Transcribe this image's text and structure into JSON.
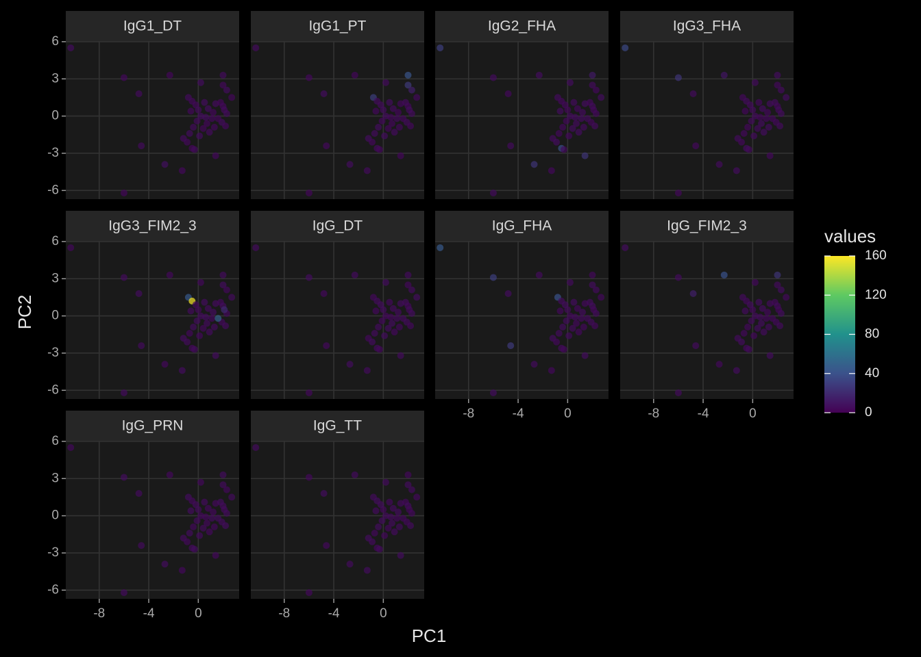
{
  "chart_data": {
    "type": "scatter",
    "x_label": "PC1",
    "y_label": "PC2",
    "x": [
      -10.3,
      -6.0,
      -4.8,
      -2.3,
      -4.6,
      -2.7,
      -1.3,
      -6.0,
      0.2,
      2.0,
      2.0,
      2.3,
      2.7,
      -0.8,
      -0.5,
      0.5,
      1.4,
      1.8,
      2.0,
      0.8,
      0.0,
      -0.6,
      1.2,
      2.3,
      0.2,
      1.1,
      -0.1,
      0.7,
      1.9,
      2.2,
      -0.4,
      0.4,
      1.3,
      -0.7,
      -1.2,
      -0.9,
      -0.5,
      -0.3,
      1.4,
      0.1,
      0.9,
      1.6,
      -0.2,
      0.6,
      2.1
    ],
    "y": [
      5.5,
      3.1,
      1.8,
      3.3,
      -2.4,
      -3.9,
      -4.4,
      -6.2,
      2.7,
      3.3,
      2.5,
      2.1,
      1.5,
      1.5,
      1.2,
      1.1,
      1.0,
      1.1,
      0.8,
      0.6,
      0.5,
      0.4,
      0.3,
      0.2,
      0.0,
      -0.2,
      -0.4,
      -0.6,
      -0.5,
      -0.8,
      -0.9,
      -1.0,
      -0.9,
      -1.4,
      -1.8,
      -2.1,
      -2.6,
      -2.7,
      -3.2,
      -1.6,
      -1.3,
      -0.2,
      0.9,
      -0.1,
      0.5
    ],
    "xlim": [
      -10.7,
      3.3
    ],
    "ylim": [
      -6.7,
      6.05
    ],
    "xticks": [
      -8,
      -4,
      0
    ],
    "yticks": [
      -6,
      -3,
      0,
      3,
      6
    ],
    "facets": [
      {
        "name": "IgG1_DT",
        "values": [
          6,
          4,
          5,
          3,
          5,
          7,
          4,
          3,
          6,
          5,
          4,
          6,
          3,
          5,
          4,
          6,
          5,
          3,
          4,
          6,
          5,
          4,
          3,
          5,
          6,
          4,
          5,
          3,
          6,
          4,
          5,
          3,
          4,
          6,
          5,
          4,
          3,
          5,
          4,
          6,
          5,
          3,
          4,
          6,
          5
        ]
      },
      {
        "name": "IgG1_PT",
        "values": [
          5,
          4,
          6,
          3,
          4,
          6,
          5,
          3,
          5,
          42,
          28,
          15,
          4,
          30,
          5,
          6,
          4,
          5,
          4,
          5,
          6,
          4,
          3,
          5,
          6,
          5,
          4,
          3,
          5,
          4,
          6,
          3,
          4,
          5,
          6,
          4,
          5,
          4,
          3,
          6,
          5,
          4,
          5,
          4,
          6
        ]
      },
      {
        "name": "IgG2_FHA",
        "values": [
          30,
          5,
          4,
          6,
          5,
          25,
          4,
          5,
          6,
          12,
          5,
          4,
          6,
          5,
          4,
          5,
          6,
          4,
          5,
          4,
          3,
          6,
          5,
          4,
          5,
          6,
          4,
          5,
          3,
          5,
          4,
          6,
          5,
          4,
          5,
          6,
          38,
          5,
          25,
          4,
          6,
          5,
          4,
          5,
          4
        ]
      },
      {
        "name": "IgG3_FHA",
        "values": [
          35,
          25,
          5,
          10,
          4,
          5,
          6,
          4,
          5,
          6,
          4,
          5,
          6,
          4,
          5,
          4,
          6,
          5,
          4,
          6,
          5,
          3,
          4,
          6,
          5,
          4,
          5,
          6,
          4,
          5,
          3,
          5,
          6,
          4,
          5,
          4,
          6,
          5,
          4,
          5,
          6,
          4,
          5,
          3,
          5
        ]
      },
      {
        "name": "IgG3_FIM2_3",
        "values": [
          4,
          5,
          6,
          4,
          5,
          4,
          6,
          5,
          4,
          5,
          6,
          4,
          5,
          45,
          158,
          6,
          5,
          4,
          6,
          5,
          4,
          5,
          6,
          4,
          5,
          4,
          6,
          5,
          4,
          5,
          6,
          4,
          5,
          4,
          6,
          5,
          4,
          5,
          6,
          4,
          5,
          50,
          4,
          6,
          20
        ]
      },
      {
        "name": "IgG_DT",
        "values": [
          5,
          6,
          4,
          5,
          4,
          6,
          5,
          4,
          6,
          5,
          4,
          5,
          6,
          4,
          5,
          4,
          6,
          5,
          4,
          5,
          6,
          4,
          5,
          6,
          4,
          5,
          4,
          6,
          5,
          4,
          5,
          6,
          4,
          5,
          4,
          6,
          5,
          4,
          5,
          6,
          4,
          5,
          6,
          4,
          5
        ]
      },
      {
        "name": "IgG_FHA",
        "values": [
          45,
          30,
          6,
          5,
          28,
          5,
          4,
          6,
          5,
          4,
          6,
          5,
          4,
          40,
          5,
          6,
          4,
          5,
          6,
          4,
          5,
          4,
          6,
          5,
          4,
          5,
          6,
          4,
          5,
          4,
          6,
          5,
          4,
          5,
          6,
          4,
          5,
          4,
          6,
          5,
          4,
          5,
          6,
          5,
          4
        ]
      },
      {
        "name": "IgG_FIM2_3",
        "values": [
          6,
          5,
          15,
          40,
          5,
          4,
          6,
          5,
          4,
          25,
          5,
          6,
          4,
          5,
          4,
          6,
          5,
          4,
          5,
          6,
          4,
          5,
          4,
          6,
          5,
          4,
          5,
          6,
          4,
          5,
          4,
          6,
          5,
          4,
          5,
          6,
          4,
          5,
          6,
          4,
          5,
          4,
          6,
          5,
          4
        ]
      },
      {
        "name": "IgG_PRN",
        "values": [
          4,
          6,
          5,
          4,
          5,
          6,
          4,
          5,
          4,
          6,
          5,
          4,
          5,
          6,
          4,
          5,
          4,
          6,
          5,
          4,
          5,
          6,
          4,
          5,
          4,
          6,
          5,
          4,
          5,
          6,
          4,
          5,
          4,
          6,
          5,
          4,
          5,
          6,
          4,
          5,
          4,
          6,
          5,
          4,
          5
        ]
      },
      {
        "name": "IgG_TT",
        "values": [
          5,
          4,
          6,
          5,
          4,
          5,
          6,
          4,
          5,
          4,
          6,
          5,
          4,
          5,
          6,
          4,
          5,
          4,
          6,
          5,
          4,
          5,
          6,
          4,
          5,
          4,
          6,
          5,
          4,
          5,
          6,
          4,
          5,
          4,
          6,
          5,
          4,
          5,
          6,
          4,
          5,
          4,
          6,
          5,
          4
        ]
      }
    ],
    "color_scale": {
      "name": "values",
      "lim": [
        0,
        160
      ],
      "ticks": [
        0,
        40,
        80,
        120,
        160
      ]
    }
  }
}
